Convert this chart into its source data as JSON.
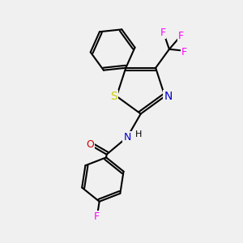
{
  "background_color": "#f0f0f0",
  "atom_colors": {
    "C": "#000000",
    "N": "#0000cc",
    "O": "#cc0000",
    "S": "#cccc00",
    "F_magenta": "#ff00ff",
    "F_bottom": "#cc00cc"
  },
  "bond_color": "#000000",
  "bond_width": 1.5,
  "xlim": [
    -1.3,
    1.4
  ],
  "ylim": [
    -1.7,
    1.4
  ]
}
